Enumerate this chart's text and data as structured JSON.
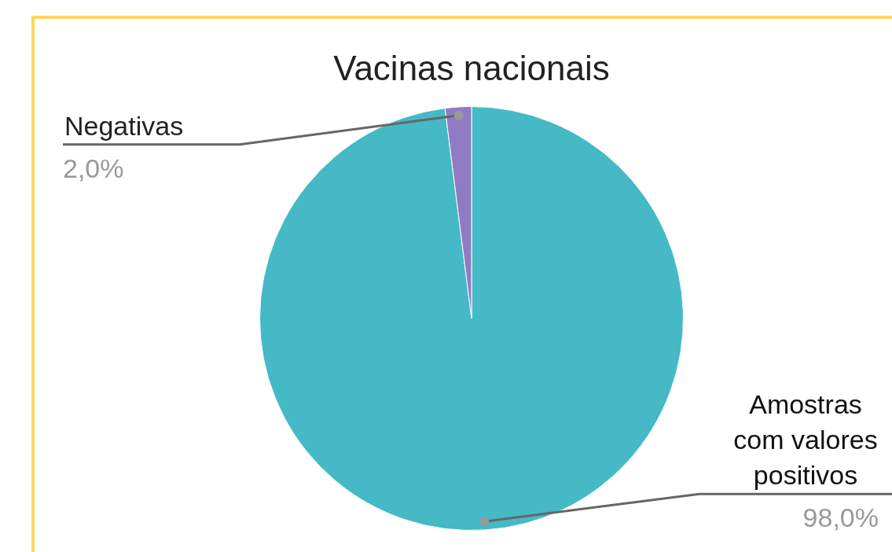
{
  "chart_data": {
    "type": "pie",
    "title": "Vacinas nacionais",
    "categories": [
      "Amostras com valores positivos",
      "Negativas"
    ],
    "values": [
      98.0,
      2.0
    ],
    "value_labels": [
      "98,0%",
      "2,0%"
    ],
    "colors": [
      "#45b9c6",
      "#8f7bc4"
    ],
    "legend": false
  }
}
